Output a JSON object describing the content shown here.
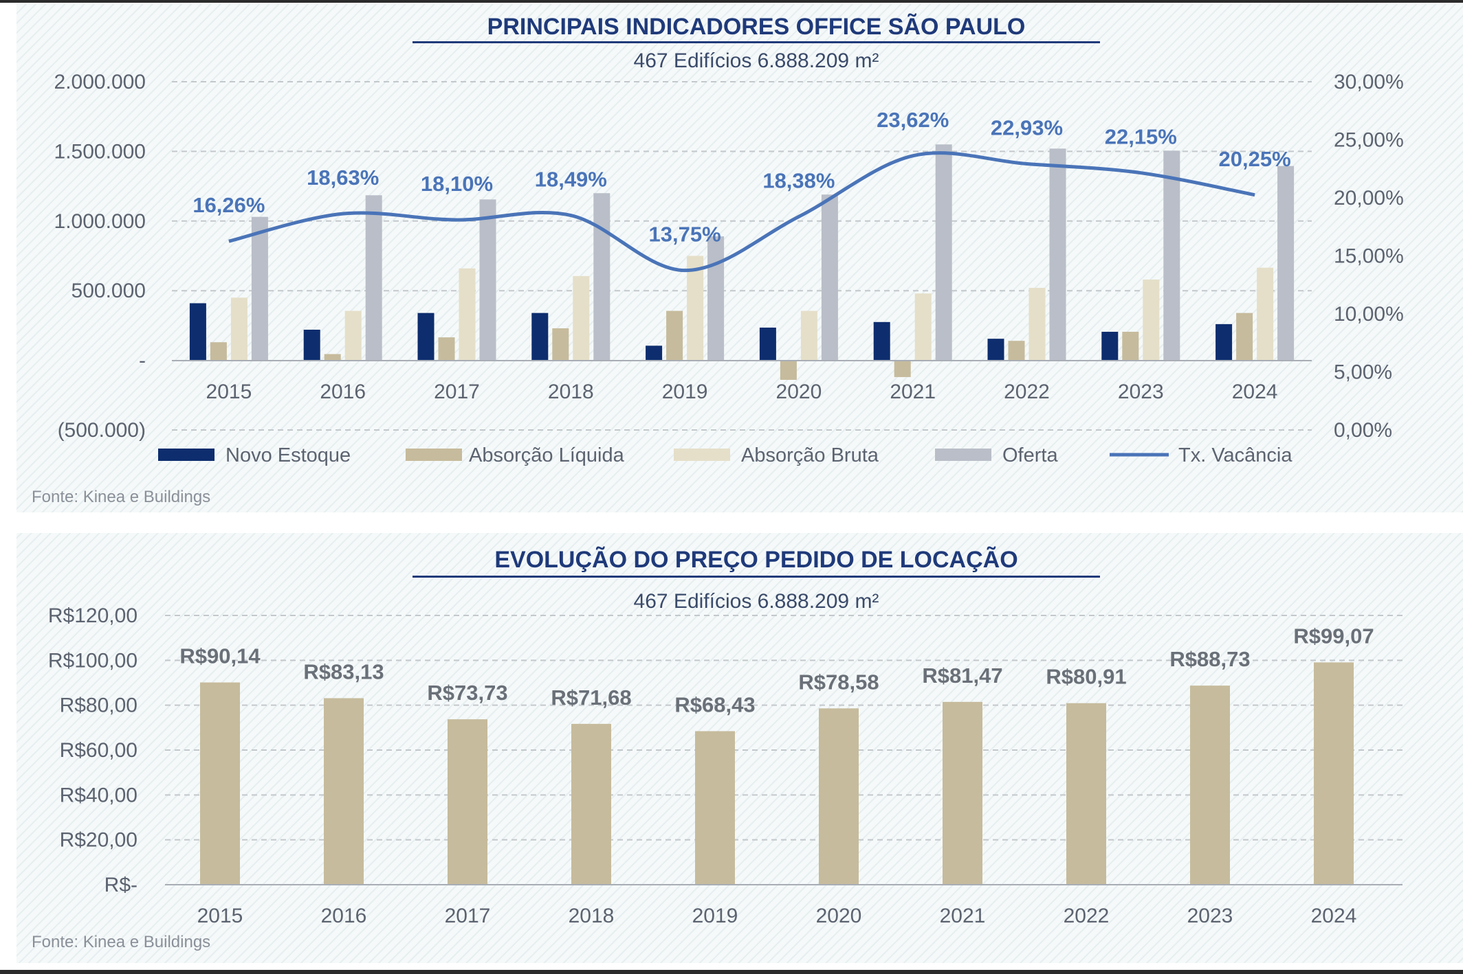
{
  "chart_data": [
    {
      "type": "bar",
      "title": "PRINCIPAIS INDICADORES OFFICE SÃO PAULO",
      "subtitle": "467 Edifícios 6.888.209 m²",
      "source": "Fonte: Kinea e Buildings",
      "categories": [
        "2015",
        "2016",
        "2017",
        "2018",
        "2019",
        "2020",
        "2021",
        "2022",
        "2023",
        "2024"
      ],
      "ylim": [
        -500000,
        2000000
      ],
      "yticks": [
        2000000,
        1500000,
        1000000,
        500000,
        0,
        -500000
      ],
      "ytick_labels": [
        "2.000.000",
        "1.500.000",
        "1.000.000",
        "500.000",
        "-",
        "(500.000)"
      ],
      "y2lim": [
        0,
        30
      ],
      "y2ticks": [
        30,
        25,
        20,
        15,
        10,
        5,
        0
      ],
      "y2tick_labels": [
        "30,00%",
        "25,00%",
        "20,00%",
        "15,00%",
        "10,00%",
        "5,00%",
        "0,00%"
      ],
      "grid": true,
      "legend_position": "bottom",
      "series": [
        {
          "name": "Novo Estoque",
          "color": "#0d2d6e",
          "values": [
            410000,
            220000,
            340000,
            340000,
            105000,
            235000,
            275000,
            155000,
            205000,
            260000
          ]
        },
        {
          "name": "Absorção Líquida",
          "color": "#c6bb9c",
          "values": [
            130000,
            45000,
            165000,
            230000,
            355000,
            -140000,
            -120000,
            140000,
            205000,
            340000
          ]
        },
        {
          "name": "Absorção Bruta",
          "color": "#e5dfc9",
          "values": [
            450000,
            355000,
            660000,
            605000,
            750000,
            355000,
            480000,
            520000,
            580000,
            665000
          ]
        },
        {
          "name": "Oferta",
          "color": "#b9bec8",
          "values": [
            1030000,
            1185000,
            1155000,
            1200000,
            890000,
            1190000,
            1550000,
            1520000,
            1505000,
            1395000
          ]
        }
      ],
      "line_series": {
        "name": "Tx. Vacância",
        "color": "#4a74b8",
        "axis": "right",
        "values": [
          16.26,
          18.63,
          18.1,
          18.49,
          13.75,
          18.38,
          23.62,
          22.93,
          22.15,
          20.25
        ],
        "labels": [
          "16,26%",
          "18,63%",
          "18,10%",
          "18,49%",
          "13,75%",
          "18,38%",
          "23,62%",
          "22,93%",
          "22,15%",
          "20,25%"
        ]
      }
    },
    {
      "type": "bar",
      "title": "EVOLUÇÃO DO PREÇO PEDIDO DE LOCAÇÃO",
      "subtitle": "467 Edifícios 6.888.209 m²",
      "source": "Fonte: Kinea e Buildings",
      "categories": [
        "2015",
        "2016",
        "2017",
        "2018",
        "2019",
        "2020",
        "2021",
        "2022",
        "2023",
        "2024"
      ],
      "ylim": [
        0,
        120
      ],
      "yticks": [
        120,
        100,
        80,
        60,
        40,
        20,
        0
      ],
      "ytick_labels": [
        "R$120,00",
        "R$100,00",
        "R$80,00",
        "R$60,00",
        "R$40,00",
        "R$20,00",
        "R$-"
      ],
      "grid": true,
      "series": [
        {
          "color": "#c6bb9c",
          "values": [
            90.14,
            83.13,
            73.73,
            71.68,
            68.43,
            78.58,
            81.47,
            80.91,
            88.73,
            99.07
          ],
          "labels": [
            "R$90,14",
            "R$83,13",
            "R$73,73",
            "R$71,68",
            "R$68,43",
            "R$78,58",
            "R$81,47",
            "R$80,91",
            "R$88,73",
            "R$99,07"
          ]
        }
      ]
    }
  ]
}
